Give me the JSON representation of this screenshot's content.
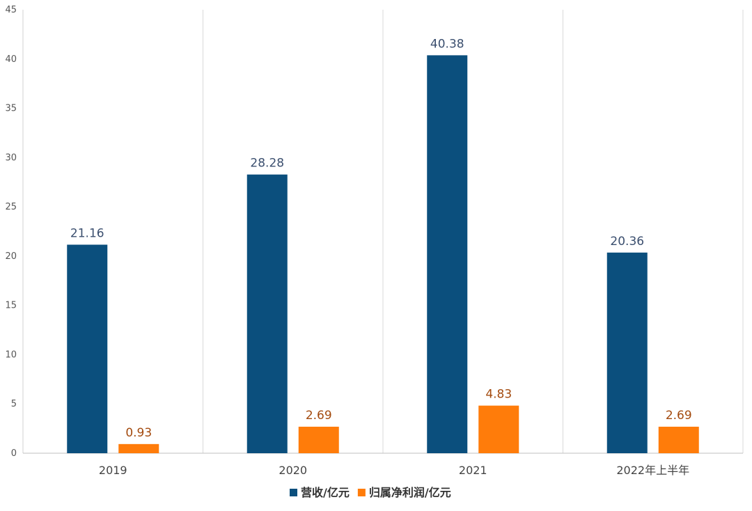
{
  "chart_data": {
    "type": "bar",
    "categories": [
      "2019",
      "2020",
      "2021",
      "2022年上半年"
    ],
    "series": [
      {
        "name": "营收/亿元",
        "values": [
          21.16,
          28.28,
          40.38,
          20.36
        ],
        "labels": [
          "21.16",
          "28.28",
          "40.38",
          "20.36"
        ],
        "color": "#0B4F7D",
        "label_color": "#3A4E6E"
      },
      {
        "name": "归属净利润/亿元",
        "values": [
          0.93,
          2.69,
          4.83,
          2.69
        ],
        "labels": [
          "0.93",
          "2.69",
          "4.83",
          "2.69"
        ],
        "color": "#FF7C0A",
        "label_color": "#A34A0E"
      }
    ],
    "y_ticks": [
      "0",
      "5",
      "10",
      "15",
      "20",
      "25",
      "30",
      "35",
      "40",
      "45"
    ],
    "ylim": [
      0,
      45
    ],
    "title": "",
    "xlabel": "",
    "ylabel": "",
    "grid": "vertical separators between categories",
    "legend_position": "bottom-center"
  }
}
